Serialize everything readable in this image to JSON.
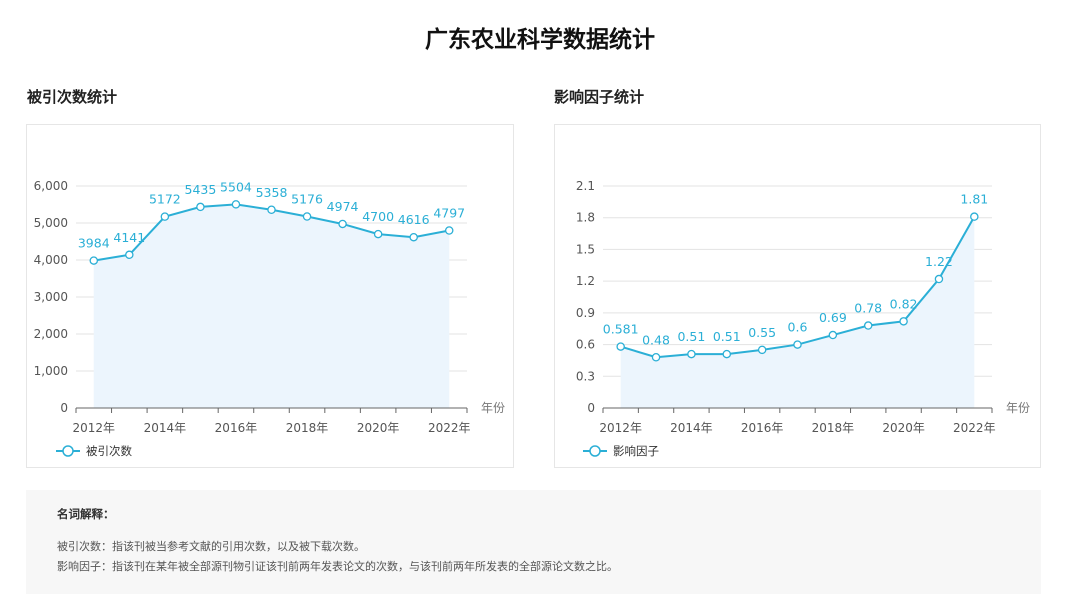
{
  "page": {
    "title": "广东农业科学数据统计"
  },
  "sections": {
    "citations_title": "被引次数统计",
    "impact_title": "影响因子统计"
  },
  "chart_data": [
    {
      "id": "citations",
      "type": "area",
      "title": "",
      "xlabel": "年份",
      "ylabel": "",
      "categories": [
        "2012年",
        "2013年",
        "2014年",
        "2015年",
        "2016年",
        "2017年",
        "2018年",
        "2019年",
        "2020年",
        "2021年",
        "2022年"
      ],
      "xtick_labels": [
        "2012年",
        "",
        "2014年",
        "",
        "2016年",
        "",
        "2018年",
        "",
        "2020年",
        "",
        "2022年"
      ],
      "series": [
        {
          "name": "被引次数",
          "values": [
            3984,
            4141,
            5172,
            5435,
            5504,
            5358,
            5176,
            4974,
            4700,
            4616,
            4797
          ]
        }
      ],
      "data_labels": [
        "3984",
        "4141",
        "5172",
        "5435",
        "5504",
        "5358",
        "5176",
        "4974",
        "4700",
        "4616",
        "4797"
      ],
      "ylim": [
        0,
        6000
      ],
      "yticks": [
        0,
        1000,
        2000,
        3000,
        4000,
        5000,
        6000
      ],
      "ytick_labels": [
        "0",
        "1,000",
        "2,000",
        "3,000",
        "4,000",
        "5,000",
        "6,000"
      ],
      "grid": true,
      "legend": "bottom-left",
      "color": "#2bafd6",
      "fill": "#ecf5fd"
    },
    {
      "id": "impact",
      "type": "area",
      "title": "",
      "xlabel": "年份",
      "ylabel": "",
      "categories": [
        "2012年",
        "2013年",
        "2014年",
        "2015年",
        "2016年",
        "2017年",
        "2018年",
        "2019年",
        "2020年",
        "2021年",
        "2022年"
      ],
      "xtick_labels": [
        "2012年",
        "",
        "2014年",
        "",
        "2016年",
        "",
        "2018年",
        "",
        "2020年",
        "",
        "2022年"
      ],
      "series": [
        {
          "name": "影响因子",
          "values": [
            0.581,
            0.48,
            0.51,
            0.51,
            0.55,
            0.6,
            0.69,
            0.78,
            0.82,
            1.22,
            1.81
          ]
        }
      ],
      "data_labels": [
        "0.581",
        "0.48",
        "0.51",
        "0.51",
        "0.55",
        "0.6",
        "0.69",
        "0.78",
        "0.82",
        "1.22",
        "1.81"
      ],
      "ylim": [
        0,
        2.1
      ],
      "yticks": [
        0,
        0.3,
        0.6,
        0.9,
        1.2,
        1.5,
        1.8,
        2.1
      ],
      "ytick_labels": [
        "0",
        "0.3",
        "0.6",
        "0.9",
        "1.2",
        "1.5",
        "1.8",
        "2.1"
      ],
      "grid": true,
      "legend": "bottom-left",
      "color": "#2bafd6",
      "fill": "#ecf5fd"
    }
  ],
  "glossary": {
    "title": "名词解释：",
    "items": [
      "被引次数：指该刊被当参考文献的引用次数，以及被下载次数。",
      "影响因子：指该刊在某年被全部源刊物引证该刊前两年发表论文的次数，与该刊前两年所发表的全部源论文数之比。"
    ]
  }
}
